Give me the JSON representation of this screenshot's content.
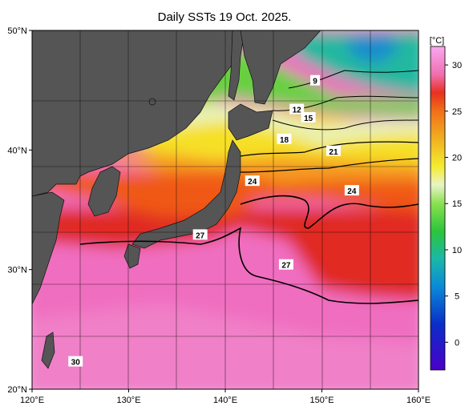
{
  "chart_data": {
    "type": "heatmap",
    "title": "Daily SSTs 19 Oct. 2025.",
    "x_ticks": [
      "120°E",
      "130°E",
      "140°E",
      "150°E",
      "160°E"
    ],
    "x_tick_values": [
      120,
      130,
      140,
      150,
      160
    ],
    "y_ticks": [
      "50°N",
      "40°N",
      "30°N",
      "20°N"
    ],
    "y_tick_values": [
      50,
      40,
      30,
      20
    ],
    "xlim": [
      120,
      160
    ],
    "ylim": [
      20,
      50
    ],
    "grid": true,
    "colorbar": {
      "unit": "[°C]",
      "range": [
        -3,
        32
      ],
      "ticks": [
        0,
        5,
        10,
        15,
        20,
        25,
        30
      ],
      "tick_labels": [
        "0",
        "5",
        "10",
        "15",
        "20",
        "25",
        "30"
      ],
      "stops": [
        {
          "value": -3,
          "color": "#4a00c8"
        },
        {
          "value": 2,
          "color": "#0a2ec8"
        },
        {
          "value": 6,
          "color": "#0a8ad8"
        },
        {
          "value": 9,
          "color": "#1ab8a8"
        },
        {
          "value": 12,
          "color": "#2cc43c"
        },
        {
          "value": 15,
          "color": "#8ae050"
        },
        {
          "value": 17,
          "color": "#e8f4c8"
        },
        {
          "value": 19,
          "color": "#f4ec30"
        },
        {
          "value": 22,
          "color": "#f0b020"
        },
        {
          "value": 25,
          "color": "#f07018"
        },
        {
          "value": 27,
          "color": "#e83020"
        },
        {
          "value": 29,
          "color": "#f070b0"
        },
        {
          "value": 32,
          "color": "#f8a8f0"
        }
      ]
    },
    "contour_labels": [
      {
        "text": "9",
        "lon": 149.3,
        "lat": 45.8
      },
      {
        "text": "12",
        "lon": 147.4,
        "lat": 43.4
      },
      {
        "text": "15",
        "lon": 148.6,
        "lat": 42.7
      },
      {
        "text": "18",
        "lon": 146.1,
        "lat": 40.9
      },
      {
        "text": "21",
        "lon": 151.2,
        "lat": 39.9
      },
      {
        "text": "24",
        "lon": 142.8,
        "lat": 37.4
      },
      {
        "text": "24",
        "lon": 153.1,
        "lat": 36.6
      },
      {
        "text": "27",
        "lon": 137.4,
        "lat": 32.9
      },
      {
        "text": "27",
        "lon": 146.3,
        "lat": 30.4
      },
      {
        "text": "30",
        "lon": 124.5,
        "lat": 22.3
      }
    ]
  }
}
